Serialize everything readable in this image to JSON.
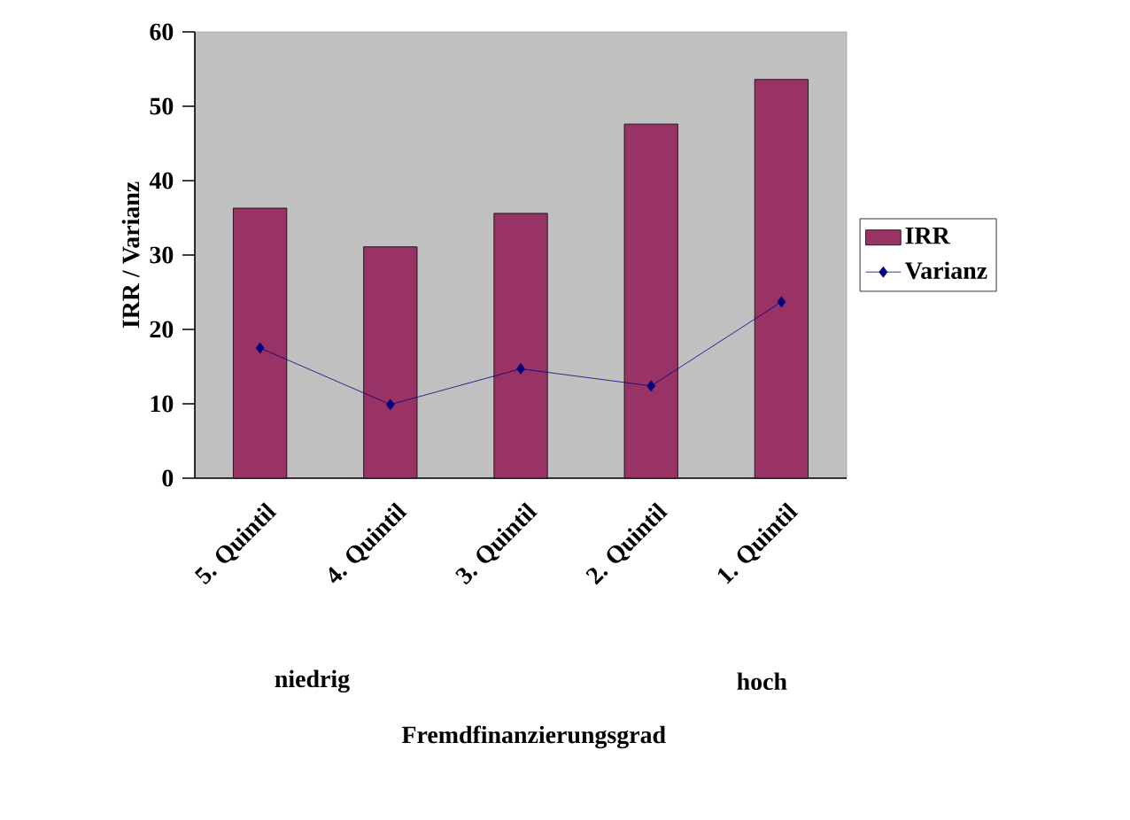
{
  "chart_data": {
    "type": "bar",
    "ylabel": "IRR / Varianz",
    "categories": [
      "5. Quintil",
      "4. Quintil",
      "3. Quintil",
      "2. Quintil",
      "1. Quintil"
    ],
    "series": [
      {
        "name": "IRR",
        "color": "#993366",
        "values": [
          36.3,
          31.1,
          35.6,
          47.6,
          53.6
        ]
      },
      {
        "name": "Varianz",
        "type": "line",
        "color": "#000080",
        "marker": "diamond",
        "values": [
          17.5,
          9.9,
          14.7,
          12.4,
          23.7
        ]
      }
    ],
    "ylim": [
      0,
      60
    ],
    "yticks": [
      0,
      10,
      20,
      30,
      40,
      50,
      60
    ],
    "legend": "right",
    "grid": false,
    "annotations": [
      "niedrig",
      "hoch",
      "Fremdfinanzierungsgrad"
    ]
  }
}
